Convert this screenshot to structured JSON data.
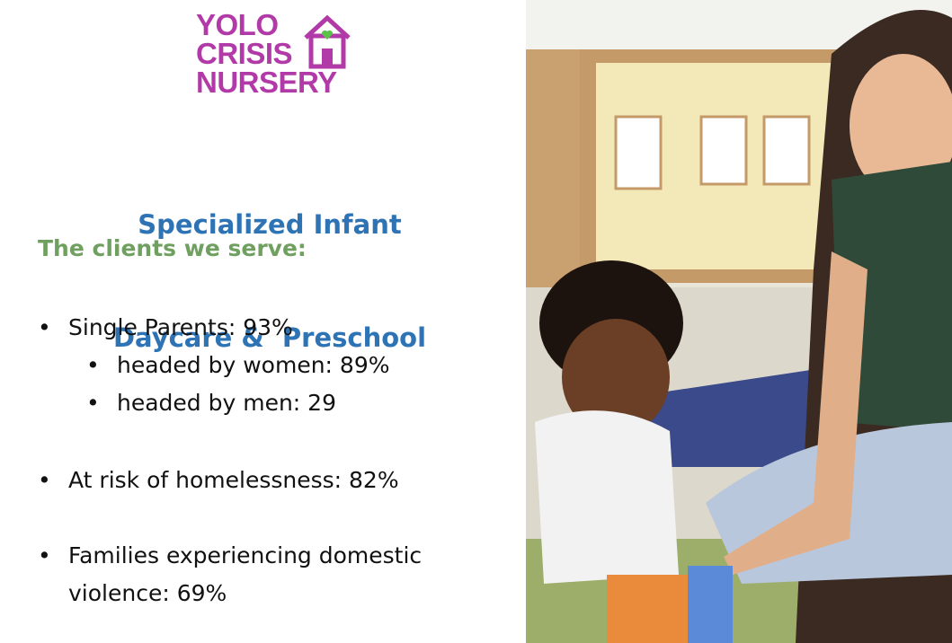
{
  "logo": {
    "lines": [
      "YOLO",
      "CRISIS",
      "NURSERY"
    ]
  },
  "title": {
    "lines": [
      "Specialized Infant",
      "Daycare &  Preschool"
    ]
  },
  "heading": "The clients we serve:",
  "bullets": [
    {
      "text": "Single Parents: 93%",
      "subitems": [
        "headed by women: 89%",
        "headed by men: 29"
      ]
    },
    {
      "text": "At risk of homelessness: 82%"
    },
    {
      "text": "Families experiencing domestic violence: 69%"
    }
  ]
}
